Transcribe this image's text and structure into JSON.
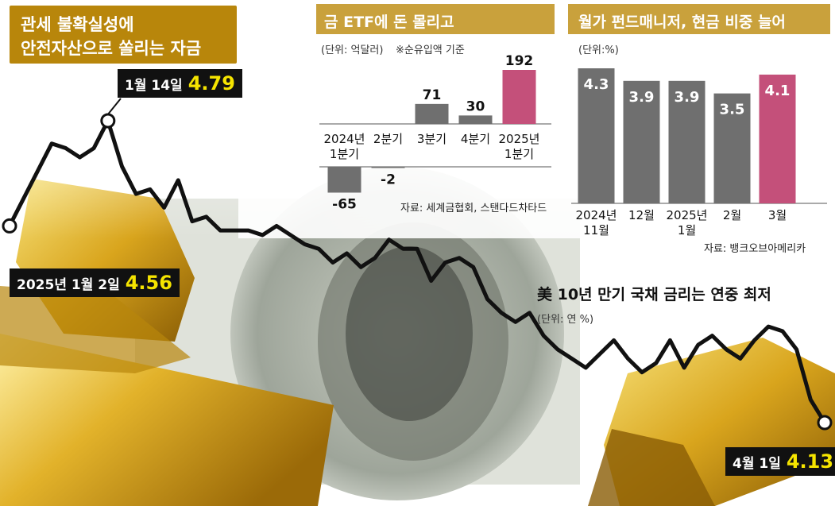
{
  "headline": {
    "line1": "관세 불확실성에",
    "line2": "안전자산으로 쏠리는 자금"
  },
  "colors": {
    "headline_bg": "#b8860b",
    "gray_bar": "#6f6f6f",
    "highlight_bar": "#c4507a",
    "line": "#111111",
    "callout_value": "#f5e400"
  },
  "etf_panel": {
    "title": "금 ETF에 돈 몰리고",
    "unit": "(단위: 억달러)",
    "note": "※순유입액 기준",
    "source": "자료: 세계금협회, 스탠다드차타드"
  },
  "fund_panel": {
    "title": "월가 펀드매니저, 현금 비중 늘어",
    "unit": "(단위:%)",
    "source": "자료: 뱅크오브아메리카"
  },
  "bond_panel": {
    "title": "美 10년 만기 국채 금리는 연중 최저",
    "unit": "(단위: 연 %)"
  },
  "callouts": {
    "start": {
      "date": "2025년 1월 2일",
      "value": "4.56"
    },
    "peak": {
      "date": "1월 14일",
      "value": "4.79"
    },
    "end": {
      "date": "4월 1일",
      "value": "4.13"
    }
  },
  "chart_data": [
    {
      "type": "bar",
      "title": "금 ETF에 돈 몰리고",
      "ylabel": "억달러",
      "categories": [
        "2024년 1분기",
        "2분기",
        "3분기",
        "4분기",
        "2025년 1분기"
      ],
      "values": [
        -65,
        -2,
        71,
        30,
        192
      ],
      "value_labels": [
        "-65",
        "-2",
        "71",
        "30",
        "192"
      ],
      "highlight_index": 4,
      "ylim": [
        -65,
        192
      ],
      "grid": false
    },
    {
      "type": "bar",
      "title": "월가 펀드매니저, 현금 비중 늘어",
      "ylabel": "%",
      "categories": [
        "2024년 11월",
        "12월",
        "2025년 1월",
        "2월",
        "3월"
      ],
      "values": [
        4.3,
        3.9,
        3.9,
        3.5,
        4.1
      ],
      "value_labels": [
        "4.3",
        "3.9",
        "3.9",
        "3.5",
        "4.1"
      ],
      "highlight_index": 4,
      "ylim": [
        0,
        4.6
      ],
      "grid": false
    },
    {
      "type": "line",
      "title": "美 10년 만기 국채 금리는 연중 최저",
      "ylabel": "연 %",
      "x_start": "2025-01-02",
      "x_end": "2025-04-01",
      "values": [
        4.56,
        4.62,
        4.68,
        4.74,
        4.73,
        4.71,
        4.73,
        4.79,
        4.69,
        4.63,
        4.64,
        4.6,
        4.66,
        4.57,
        4.58,
        4.55,
        4.55,
        4.55,
        4.54,
        4.56,
        4.54,
        4.52,
        4.51,
        4.48,
        4.5,
        4.47,
        4.49,
        4.53,
        4.51,
        4.51,
        4.44,
        4.48,
        4.49,
        4.47,
        4.4,
        4.37,
        4.35,
        4.37,
        4.32,
        4.29,
        4.27,
        4.25,
        4.28,
        4.31,
        4.27,
        4.24,
        4.26,
        4.31,
        4.25,
        4.3,
        4.32,
        4.29,
        4.27,
        4.31,
        4.34,
        4.33,
        4.29,
        4.18,
        4.13
      ],
      "ylim": [
        4.0,
        4.85
      ],
      "grid": false
    }
  ]
}
